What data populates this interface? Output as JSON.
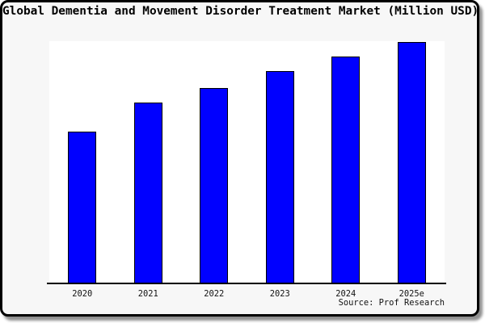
{
  "window": {
    "background_color": "#f7f7f7",
    "plot_background_color": "#ffffff",
    "frame_border_color": "#000000",
    "shadow_color": "#909090"
  },
  "title": "Global Dementia and Movement Disorder Treatment Market (Million USD)",
  "source": "Source: Prof Research",
  "chart_data": {
    "type": "bar",
    "title": "Global Dementia and Movement Disorder Treatment Market (Million USD)",
    "categories": [
      "2020",
      "2021",
      "2022",
      "2023",
      "2024",
      "2025e"
    ],
    "values": [
      63,
      75,
      81,
      88,
      94,
      100
    ],
    "value_scale_note": "no y-axis ticks or data labels shown; values estimated from bar heights as relative index with 2025e = 100",
    "xlabel": "",
    "ylabel": "",
    "ylim": [
      0,
      100.5
    ],
    "grid": false,
    "legend": false,
    "bar_color": "#0000ff",
    "bar_border_color": "#000000"
  }
}
